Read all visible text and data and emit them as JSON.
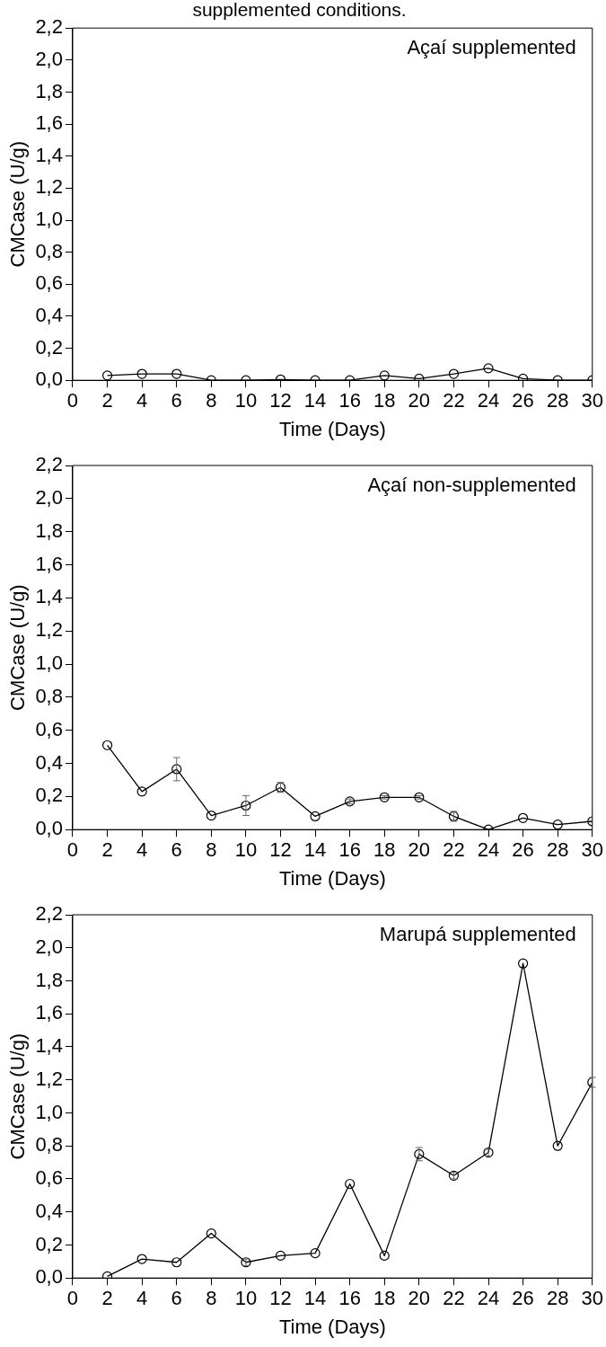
{
  "chart_data": [
    {
      "type": "line",
      "title": "supplemented conditions.",
      "xlabel": "Time (Days)",
      "ylabel": "CMCase (U/g)",
      "annotations": [
        "Açaí supplemented"
      ],
      "x": [
        2,
        4,
        6,
        8,
        10,
        12,
        14,
        16,
        18,
        20,
        22,
        24,
        26,
        28,
        30
      ],
      "series": [
        {
          "color": "#000000",
          "values": [
            0.03,
            0.04,
            0.04,
            0,
            0,
            0.005,
            0,
            0,
            0.03,
            0.01,
            0.04,
            0.075,
            0.01,
            0,
            0
          ]
        }
      ],
      "xlim": [
        0,
        30
      ],
      "xticks": [
        0,
        2,
        4,
        6,
        8,
        10,
        12,
        14,
        16,
        18,
        20,
        22,
        24,
        26,
        28,
        30
      ],
      "ylim": [
        0,
        2.2
      ],
      "yticks": [
        {
          "value": 0,
          "label": "0,0"
        },
        {
          "value": 0.2,
          "label": "0,2"
        },
        {
          "value": 0.4,
          "label": "0,4"
        },
        {
          "value": 0.6,
          "label": "0,6"
        },
        {
          "value": 0.8,
          "label": "0,8"
        },
        {
          "value": 1,
          "label": "1,0"
        },
        {
          "value": 1.2,
          "label": "1,2"
        },
        {
          "value": 1.4,
          "label": "1,4"
        },
        {
          "value": 1.6,
          "label": "1,6"
        },
        {
          "value": 1.8,
          "label": "1,8"
        },
        {
          "value": 2,
          "label": "2,0"
        },
        {
          "value": 2.2,
          "label": "2,2"
        }
      ],
      "grid": false,
      "legend": false,
      "marker": "circle",
      "line_style": "solid"
    },
    {
      "type": "line",
      "xlabel": "Time (Days)",
      "ylabel": "CMCase (U/g)",
      "annotations": [
        "Açaí non-supplemented"
      ],
      "x": [
        2,
        4,
        6,
        8,
        10,
        12,
        14,
        16,
        18,
        20,
        22,
        24,
        26,
        28,
        30
      ],
      "series": [
        {
          "color": "#000000",
          "values": [
            0.51,
            0.23,
            0.365,
            0.085,
            0.145,
            0.255,
            0.08,
            0.17,
            0.195,
            0.195,
            0.08,
            0,
            0.07,
            0.03,
            0.05
          ],
          "errors": [
            null,
            null,
            0.07,
            null,
            0.06,
            0.03,
            null,
            0.015,
            0.01,
            0.01,
            0.03,
            null,
            null,
            null,
            null
          ]
        }
      ],
      "xlim": [
        0,
        30
      ],
      "xticks": [
        0,
        2,
        4,
        6,
        8,
        10,
        12,
        14,
        16,
        18,
        20,
        22,
        24,
        26,
        28,
        30
      ],
      "ylim": [
        0,
        2.2
      ],
      "yticks": [
        {
          "value": 0,
          "label": "0,0"
        },
        {
          "value": 0.2,
          "label": "0,2"
        },
        {
          "value": 0.4,
          "label": "0,4"
        },
        {
          "value": 0.6,
          "label": "0,6"
        },
        {
          "value": 0.8,
          "label": "0,8"
        },
        {
          "value": 1,
          "label": "1,0"
        },
        {
          "value": 1.2,
          "label": "1,2"
        },
        {
          "value": 1.4,
          "label": "1,4"
        },
        {
          "value": 1.6,
          "label": "1,6"
        },
        {
          "value": 1.8,
          "label": "1,8"
        },
        {
          "value": 2,
          "label": "2,0"
        },
        {
          "value": 2.2,
          "label": "2,2"
        }
      ],
      "grid": false,
      "legend": false,
      "marker": "circle",
      "line_style": "solid"
    },
    {
      "type": "line",
      "xlabel": "Time (Days)",
      "ylabel": "CMCase (U/g)",
      "annotations": [
        "Marupá supplemented"
      ],
      "x": [
        2,
        4,
        6,
        8,
        10,
        12,
        14,
        16,
        18,
        20,
        22,
        24,
        26,
        28,
        30
      ],
      "series": [
        {
          "color": "#000000",
          "values": [
            0.01,
            0.115,
            0.095,
            0.27,
            0.095,
            0.135,
            0.15,
            0.57,
            0.135,
            0.75,
            0.62,
            0.76,
            1.905,
            0.8,
            1.185
          ],
          "errors": [
            null,
            null,
            null,
            null,
            0.02,
            null,
            null,
            null,
            null,
            0.04,
            0.02,
            0.02,
            null,
            null,
            0.03
          ]
        }
      ],
      "xlim": [
        0,
        30
      ],
      "xticks": [
        0,
        2,
        4,
        6,
        8,
        10,
        12,
        14,
        16,
        18,
        20,
        22,
        24,
        26,
        28,
        30
      ],
      "ylim": [
        0,
        2.2
      ],
      "yticks": [
        {
          "value": 0,
          "label": "0,0"
        },
        {
          "value": 0.2,
          "label": "0,2"
        },
        {
          "value": 0.4,
          "label": "0,4"
        },
        {
          "value": 0.6,
          "label": "0,6"
        },
        {
          "value": 0.8,
          "label": "0,8"
        },
        {
          "value": 1,
          "label": "1,0"
        },
        {
          "value": 1.2,
          "label": "1,2"
        },
        {
          "value": 1.4,
          "label": "1,4"
        },
        {
          "value": 1.6,
          "label": "1,6"
        },
        {
          "value": 1.8,
          "label": "1,8"
        },
        {
          "value": 2,
          "label": "2,0"
        },
        {
          "value": 2.2,
          "label": "2,2"
        }
      ],
      "grid": false,
      "legend": false,
      "marker": "circle",
      "line_style": "solid"
    }
  ]
}
